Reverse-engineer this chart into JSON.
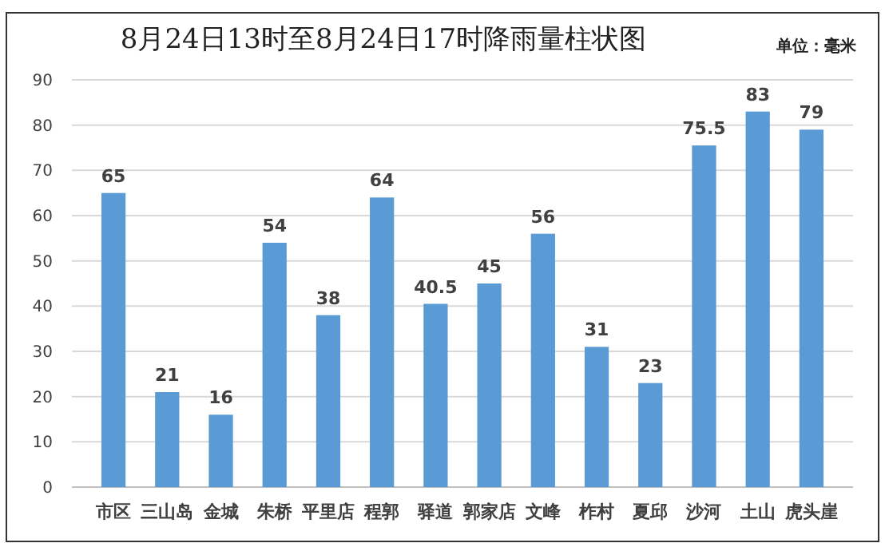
{
  "chart_data": {
    "type": "bar",
    "title": "8月24日13时至8月24日17时降雨量柱状图",
    "annotations": [
      "单位：毫米"
    ],
    "categories": [
      "市区",
      "三山岛",
      "金城",
      "朱桥",
      "平里店",
      "程郭",
      "驿道",
      "郭家店",
      "文峰",
      "柞村",
      "夏邱",
      "沙河",
      "土山",
      "虎头崖"
    ],
    "values": [
      65,
      21,
      16,
      54,
      38,
      64,
      40.5,
      45,
      56,
      31,
      23,
      75.5,
      83,
      79
    ],
    "color": "#5b9bd5",
    "ylim": [
      0,
      90
    ],
    "yticks": [
      0,
      10,
      20,
      30,
      40,
      50,
      60,
      70,
      80,
      90
    ],
    "grid": "y",
    "data_labels": true
  }
}
